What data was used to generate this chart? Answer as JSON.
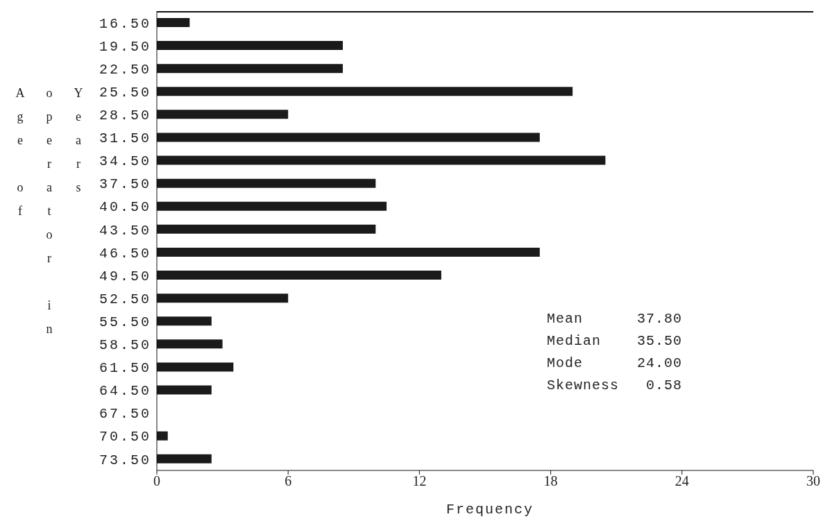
{
  "chart_data": {
    "type": "bar",
    "orientation": "horizontal",
    "xlabel": "Frequency",
    "ylabel": "Age of operator in Years",
    "categories": [
      "16.50",
      "19.50",
      "22.50",
      "25.50",
      "28.50",
      "31.50",
      "34.50",
      "37.50",
      "40.50",
      "43.50",
      "46.50",
      "49.50",
      "52.50",
      "55.50",
      "58.50",
      "61.50",
      "64.50",
      "67.50",
      "70.50",
      "73.50"
    ],
    "values": [
      1.5,
      8.5,
      8.5,
      19,
      6,
      17.5,
      20.5,
      10,
      10.5,
      10,
      17.5,
      13,
      6,
      2.5,
      3,
      3.5,
      2.5,
      0,
      0.5,
      2.5
    ],
    "color": "#1a1a1a",
    "xlim": [
      0,
      30
    ],
    "xticks": [
      0,
      6,
      12,
      18,
      24,
      30
    ],
    "annotations": [
      "Mean      37.80",
      "Median    35.50",
      "Mode      24.00",
      "Skewness   0.58"
    ]
  }
}
